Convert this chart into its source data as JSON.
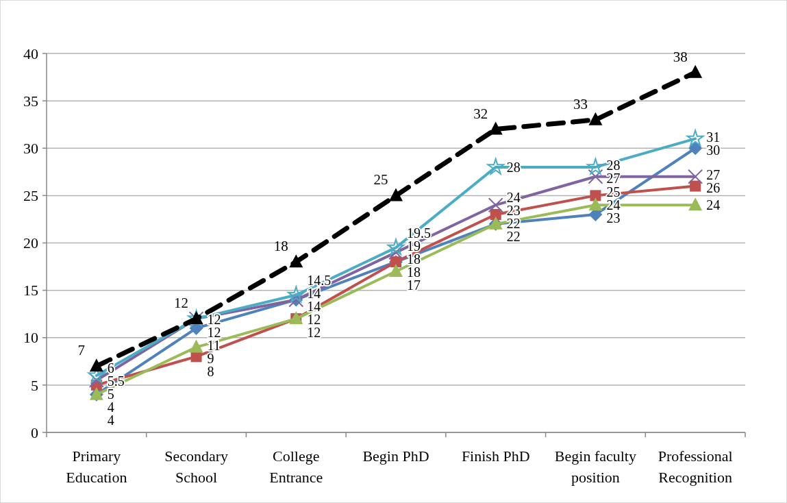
{
  "chart_data": {
    "type": "line",
    "categories": [
      "Primary Education",
      "Secondary School",
      "College Entrance",
      "Begin PhD",
      "Finish PhD",
      "Begin faculty position",
      "Professional Recognition"
    ],
    "series": [
      {
        "color": "#4f81bd",
        "marker": "diamond",
        "values": [
          4,
          11,
          14,
          18,
          22,
          23,
          30
        ]
      },
      {
        "color": "#c0504d",
        "marker": "square",
        "values": [
          5,
          8,
          12,
          18,
          23,
          25,
          26
        ]
      },
      {
        "color": "#9bbb59",
        "marker": "triangle",
        "values": [
          4,
          9,
          12,
          17,
          22,
          24,
          24
        ]
      },
      {
        "color": "#8064a2",
        "marker": "cross",
        "values": [
          5.5,
          12,
          14,
          19,
          24,
          27,
          27
        ]
      },
      {
        "color": "#4bacc6",
        "marker": "star",
        "values": [
          6,
          12,
          14.5,
          19.5,
          28,
          28,
          31
        ]
      },
      {
        "color": "#000000",
        "marker": "triangle",
        "line_style": "dashed",
        "values": [
          7,
          12,
          18,
          25,
          32,
          33,
          38
        ]
      }
    ],
    "ylim": [
      0,
      40
    ],
    "yticks": [
      0,
      5,
      10,
      15,
      20,
      25,
      30,
      35,
      40
    ],
    "grid": "y",
    "data_labels": true
  }
}
